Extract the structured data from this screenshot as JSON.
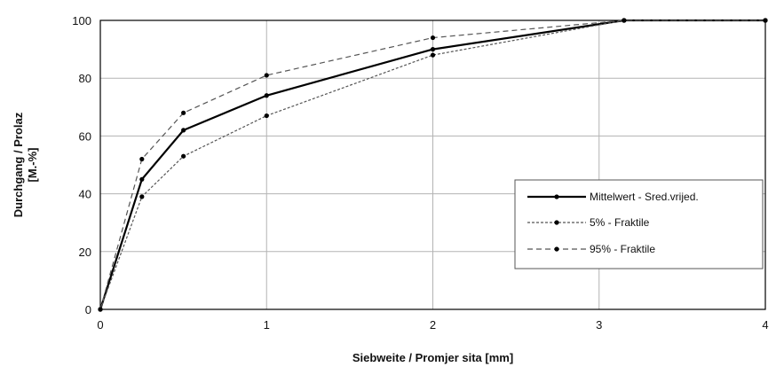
{
  "chart_data": {
    "type": "line",
    "title": "",
    "xlabel": "Siebweite / Promjer sita [mm]",
    "ylabel_line1": "Durchgang / Prolaz",
    "ylabel_line2": "[M.-%]",
    "xlim": [
      0,
      4
    ],
    "ylim": [
      0,
      100
    ],
    "xticks": [
      0,
      1,
      2,
      3,
      4
    ],
    "yticks": [
      0,
      20,
      40,
      60,
      80,
      100
    ],
    "grid": true,
    "legend_position": "right",
    "series": [
      {
        "name": "Mittelwert - Sred.vrijed.",
        "style": "solid",
        "x": [
          0,
          0.25,
          0.5,
          1,
          2,
          3.15,
          4
        ],
        "y": [
          0,
          45,
          62,
          74,
          90,
          100,
          100
        ]
      },
      {
        "name": "5% - Fraktile",
        "style": "dotted",
        "x": [
          0,
          0.25,
          0.5,
          1,
          2,
          3.15,
          4
        ],
        "y": [
          0,
          39,
          53,
          67,
          88,
          100,
          100
        ]
      },
      {
        "name": "95% - Fraktile",
        "style": "dashed",
        "x": [
          0,
          0.25,
          0.5,
          1,
          2,
          3.15,
          4
        ],
        "y": [
          0,
          52,
          68,
          81,
          94,
          100,
          100
        ]
      }
    ]
  }
}
